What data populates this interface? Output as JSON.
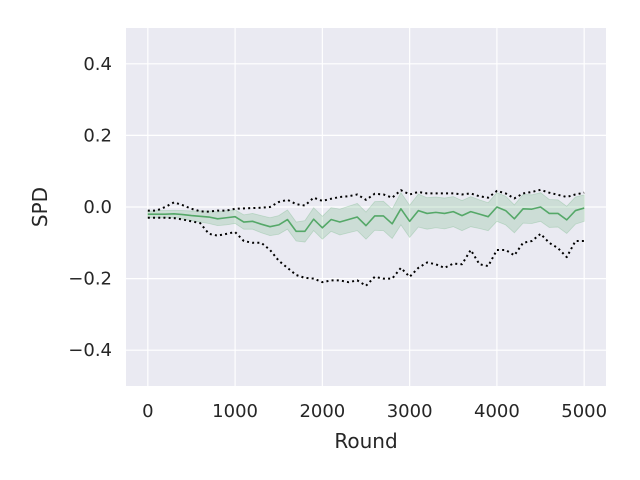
{
  "chart_data": {
    "type": "line",
    "title": "",
    "xlabel": "Round",
    "ylabel": "SPD",
    "xlim": [
      -250,
      5250
    ],
    "ylim": [
      -0.5,
      0.5
    ],
    "xticks": [
      0,
      1000,
      2000,
      3000,
      4000,
      5000
    ],
    "xtick_labels": [
      "0",
      "1000",
      "2000",
      "3000",
      "4000",
      "5000"
    ],
    "yticks": [
      -0.4,
      -0.2,
      0.0,
      0.2,
      0.4
    ],
    "ytick_labels": [
      "−0.4",
      "−0.2",
      "0.0",
      "0.2",
      "0.4"
    ],
    "grid": true,
    "background": "#eaeaf2",
    "gridColor": "#ffffff",
    "x": [
      0,
      100,
      200,
      300,
      400,
      500,
      600,
      700,
      800,
      900,
      1000,
      1100,
      1200,
      1300,
      1400,
      1500,
      1600,
      1700,
      1800,
      1900,
      2000,
      2100,
      2200,
      2300,
      2400,
      2500,
      2600,
      2700,
      2800,
      2900,
      3000,
      3100,
      3200,
      3300,
      3400,
      3500,
      3600,
      3700,
      3800,
      3900,
      4000,
      4100,
      4200,
      4300,
      4400,
      4500,
      4600,
      4700,
      4800,
      4900,
      5000
    ],
    "series": [
      {
        "role": "mean",
        "style": "solid",
        "color": "#55a868",
        "values": [
          -0.02,
          -0.02,
          -0.02,
          -0.019,
          -0.021,
          -0.024,
          -0.026,
          -0.028,
          -0.033,
          -0.03,
          -0.027,
          -0.042,
          -0.04,
          -0.048,
          -0.055,
          -0.05,
          -0.035,
          -0.068,
          -0.068,
          -0.034,
          -0.058,
          -0.035,
          -0.042,
          -0.035,
          -0.028,
          -0.052,
          -0.025,
          -0.025,
          -0.047,
          -0.005,
          -0.04,
          -0.01,
          -0.018,
          -0.015,
          -0.018,
          -0.013,
          -0.024,
          -0.013,
          -0.02,
          -0.027,
          0.0,
          -0.01,
          -0.033,
          -0.005,
          -0.006,
          0.0,
          -0.018,
          -0.018,
          -0.036,
          -0.01,
          -0.003
        ]
      },
      {
        "role": "band-lower",
        "color": "#55a868",
        "values": [
          -0.03,
          -0.03,
          -0.03,
          -0.029,
          -0.033,
          -0.038,
          -0.042,
          -0.046,
          -0.052,
          -0.05,
          -0.046,
          -0.062,
          -0.062,
          -0.072,
          -0.08,
          -0.076,
          -0.062,
          -0.095,
          -0.098,
          -0.066,
          -0.09,
          -0.068,
          -0.078,
          -0.072,
          -0.066,
          -0.09,
          -0.065,
          -0.066,
          -0.088,
          -0.05,
          -0.085,
          -0.056,
          -0.062,
          -0.058,
          -0.061,
          -0.055,
          -0.066,
          -0.055,
          -0.06,
          -0.066,
          -0.04,
          -0.05,
          -0.072,
          -0.045,
          -0.046,
          -0.04,
          -0.057,
          -0.056,
          -0.074,
          -0.048,
          -0.04
        ]
      },
      {
        "role": "band-upper",
        "color": "#55a868",
        "values": [
          -0.012,
          -0.01,
          -0.01,
          -0.009,
          -0.01,
          -0.011,
          -0.011,
          -0.011,
          -0.014,
          -0.01,
          -0.008,
          -0.022,
          -0.018,
          -0.024,
          -0.03,
          -0.024,
          -0.008,
          -0.042,
          -0.038,
          -0.002,
          -0.026,
          -0.002,
          -0.006,
          0.002,
          0.01,
          -0.014,
          0.015,
          0.016,
          -0.006,
          0.04,
          0.005,
          0.036,
          0.026,
          0.028,
          0.025,
          0.029,
          0.018,
          0.029,
          0.02,
          0.012,
          0.04,
          0.03,
          0.006,
          0.035,
          0.034,
          0.04,
          0.021,
          0.02,
          0.002,
          0.028,
          0.034
        ]
      },
      {
        "role": "max",
        "style": "dotted",
        "color": "#000000",
        "values": [
          -0.01,
          -0.01,
          0.0,
          0.013,
          0.005,
          -0.005,
          -0.012,
          -0.013,
          -0.01,
          -0.01,
          -0.005,
          -0.004,
          -0.003,
          -0.002,
          0.0,
          0.014,
          0.02,
          0.008,
          0.004,
          0.026,
          0.017,
          0.023,
          0.028,
          0.03,
          0.035,
          0.02,
          0.037,
          0.035,
          0.026,
          0.047,
          0.035,
          0.042,
          0.038,
          0.038,
          0.038,
          0.038,
          0.035,
          0.038,
          0.03,
          0.026,
          0.045,
          0.038,
          0.024,
          0.038,
          0.042,
          0.048,
          0.04,
          0.034,
          0.028,
          0.035,
          0.04
        ]
      },
      {
        "role": "min",
        "style": "dotted",
        "color": "#000000",
        "values": [
          -0.03,
          -0.03,
          -0.03,
          -0.031,
          -0.035,
          -0.04,
          -0.045,
          -0.075,
          -0.08,
          -0.075,
          -0.07,
          -0.095,
          -0.1,
          -0.1,
          -0.12,
          -0.15,
          -0.17,
          -0.19,
          -0.198,
          -0.2,
          -0.21,
          -0.205,
          -0.205,
          -0.21,
          -0.205,
          -0.22,
          -0.195,
          -0.2,
          -0.2,
          -0.17,
          -0.195,
          -0.17,
          -0.155,
          -0.16,
          -0.17,
          -0.158,
          -0.16,
          -0.12,
          -0.16,
          -0.165,
          -0.12,
          -0.12,
          -0.135,
          -0.1,
          -0.095,
          -0.075,
          -0.1,
          -0.115,
          -0.14,
          -0.095,
          -0.095
        ]
      }
    ]
  }
}
